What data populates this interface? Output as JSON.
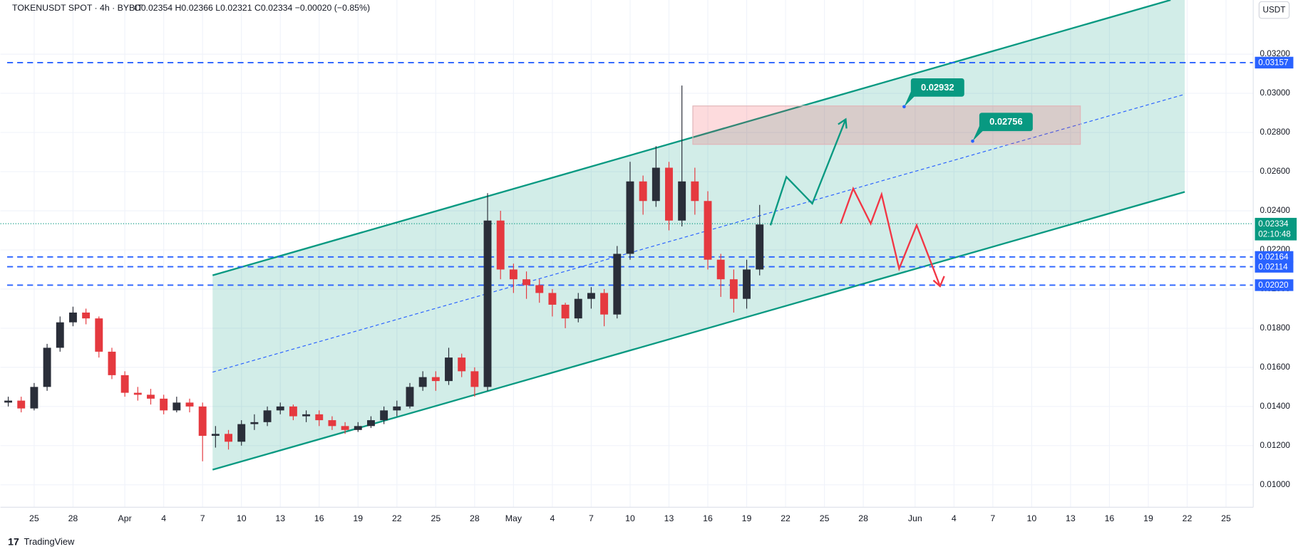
{
  "chart_data": {
    "type": "candlestick",
    "title": "TOKENUSDT SPOT · 4h · BYBIT",
    "ohlc_header": "O0.02354 H0.02366 L0.02321 C0.02334 −0.00020 (−0.85%)",
    "currency": "USDT",
    "watermark": "TradingView",
    "up_color": "#2a2e39",
    "down_color": "#e5393f",
    "x": [
      82,
      83,
      84,
      85,
      86,
      87,
      88,
      89,
      90,
      91,
      92,
      93,
      94,
      95,
      96,
      97,
      98,
      99,
      100,
      101,
      102,
      103,
      104,
      105,
      106,
      107,
      108,
      109,
      110,
      111,
      112,
      113,
      114,
      115,
      116,
      117,
      118,
      119,
      120,
      121,
      122,
      123,
      124,
      125,
      126,
      127,
      128,
      129,
      130,
      131,
      132,
      133,
      134,
      135,
      136,
      137,
      138,
      139,
      140
    ],
    "open": [
      0.0142,
      0.0143,
      0.0139,
      0.015,
      0.017,
      0.0183,
      0.0188,
      0.0185,
      0.0168,
      0.0156,
      0.0147,
      0.0146,
      0.0144,
      0.0138,
      0.0142,
      0.014,
      0.0125,
      0.0126,
      0.0122,
      0.0131,
      0.0132,
      0.0138,
      0.014,
      0.0135,
      0.0136,
      0.0133,
      0.013,
      0.0128,
      0.013,
      0.0133,
      0.0138,
      0.014,
      0.015,
      0.0155,
      0.0153,
      0.0165,
      0.0158,
      0.015,
      0.0235,
      0.021,
      0.0205,
      0.0202,
      0.0198,
      0.0192,
      0.0185,
      0.0195,
      0.0198,
      0.0187,
      0.0218,
      0.0255,
      0.0245,
      0.0262,
      0.0235,
      0.0255,
      0.0245,
      0.0215,
      0.0205,
      0.0195,
      0.021
    ],
    "high": [
      0.0145,
      0.0145,
      0.0152,
      0.0172,
      0.0186,
      0.0191,
      0.019,
      0.0186,
      0.017,
      0.0158,
      0.015,
      0.0149,
      0.0146,
      0.0145,
      0.0144,
      0.0142,
      0.013,
      0.0128,
      0.0133,
      0.0136,
      0.014,
      0.0142,
      0.0141,
      0.0138,
      0.0138,
      0.0135,
      0.0132,
      0.0132,
      0.0135,
      0.014,
      0.0143,
      0.0152,
      0.0158,
      0.0158,
      0.017,
      0.0167,
      0.016,
      0.0249,
      0.024,
      0.0213,
      0.0209,
      0.0205,
      0.02,
      0.0193,
      0.0198,
      0.0201,
      0.02,
      0.0222,
      0.0265,
      0.0258,
      0.0273,
      0.0265,
      0.0304,
      0.0262,
      0.025,
      0.0218,
      0.021,
      0.0215,
      0.0243
    ],
    "low": [
      0.014,
      0.0137,
      0.0138,
      0.0148,
      0.0168,
      0.0181,
      0.0182,
      0.0165,
      0.0154,
      0.0145,
      0.0143,
      0.0141,
      0.0136,
      0.0137,
      0.0137,
      0.0112,
      0.0119,
      0.0118,
      0.012,
      0.0128,
      0.013,
      0.0136,
      0.0133,
      0.0132,
      0.013,
      0.0128,
      0.0126,
      0.0127,
      0.0129,
      0.0131,
      0.0135,
      0.0139,
      0.0148,
      0.0148,
      0.0151,
      0.0155,
      0.0145,
      0.0148,
      0.0205,
      0.0198,
      0.0195,
      0.0193,
      0.0186,
      0.018,
      0.0183,
      0.019,
      0.0181,
      0.0185,
      0.0215,
      0.0238,
      0.0242,
      0.023,
      0.0232,
      0.0238,
      0.021,
      0.0196,
      0.0188,
      0.019,
      0.0207
    ],
    "close": [
      0.0143,
      0.0139,
      0.015,
      0.017,
      0.0183,
      0.0188,
      0.0185,
      0.0168,
      0.0156,
      0.0147,
      0.0146,
      0.0144,
      0.0138,
      0.0142,
      0.014,
      0.0125,
      0.0126,
      0.0122,
      0.0131,
      0.0132,
      0.0138,
      0.014,
      0.0135,
      0.0136,
      0.0133,
      0.013,
      0.0128,
      0.013,
      0.0133,
      0.0138,
      0.014,
      0.015,
      0.0155,
      0.0153,
      0.0165,
      0.0158,
      0.015,
      0.0235,
      0.021,
      0.0205,
      0.0202,
      0.0198,
      0.0192,
      0.0185,
      0.0195,
      0.0198,
      0.0187,
      0.0218,
      0.0255,
      0.0245,
      0.0262,
      0.0235,
      0.0255,
      0.0245,
      0.0215,
      0.0205,
      0.0195,
      0.021,
      0.0233
    ],
    "xlim": [
      81.4,
      178.1
    ],
    "ylim": [
      0.00885,
      0.03477
    ],
    "xticks": [
      {
        "value": 84,
        "label": "25"
      },
      {
        "value": 87,
        "label": "28"
      },
      {
        "value": 91,
        "label": "Apr"
      },
      {
        "value": 94,
        "label": "4"
      },
      {
        "value": 97,
        "label": "7"
      },
      {
        "value": 100,
        "label": "10"
      },
      {
        "value": 103,
        "label": "13"
      },
      {
        "value": 106,
        "label": "16"
      },
      {
        "value": 109,
        "label": "19"
      },
      {
        "value": 112,
        "label": "22"
      },
      {
        "value": 115,
        "label": "25"
      },
      {
        "value": 118,
        "label": "28"
      },
      {
        "value": 121,
        "label": "May"
      },
      {
        "value": 124,
        "label": "4"
      },
      {
        "value": 127,
        "label": "7"
      },
      {
        "value": 130,
        "label": "10"
      },
      {
        "value": 133,
        "label": "13"
      },
      {
        "value": 136,
        "label": "16"
      },
      {
        "value": 139,
        "label": "19"
      },
      {
        "value": 142,
        "label": "22"
      },
      {
        "value": 145,
        "label": "25"
      },
      {
        "value": 148,
        "label": "28"
      },
      {
        "value": 152,
        "label": "Jun"
      },
      {
        "value": 155,
        "label": "4"
      },
      {
        "value": 158,
        "label": "7"
      },
      {
        "value": 161,
        "label": "10"
      },
      {
        "value": 164,
        "label": "13"
      },
      {
        "value": 167,
        "label": "16"
      },
      {
        "value": 170,
        "label": "19"
      },
      {
        "value": 173,
        "label": "22"
      },
      {
        "value": 176,
        "label": "25"
      }
    ],
    "yticks": [
      {
        "value": 0.01,
        "label": "0.01000"
      },
      {
        "value": 0.012,
        "label": "0.01200"
      },
      {
        "value": 0.014,
        "label": "0.01400"
      },
      {
        "value": 0.016,
        "label": "0.01600"
      },
      {
        "value": 0.018,
        "label": "0.01800"
      },
      {
        "value": 0.02,
        "label": "0.02000"
      },
      {
        "value": 0.022,
        "label": "0.02200"
      },
      {
        "value": 0.024,
        "label": "0.02400"
      },
      {
        "value": 0.026,
        "label": "0.02600"
      },
      {
        "value": 0.028,
        "label": "0.02800"
      },
      {
        "value": 0.03,
        "label": "0.03000"
      },
      {
        "value": 0.032,
        "label": "0.03200"
      }
    ],
    "grid": true,
    "levels": [
      0.03157,
      0.02164,
      0.02114,
      {
        "value": 0.0202,
        "label": "0.02020"
      }
    ],
    "level_color": "#2962ff",
    "current_price": 0.02334,
    "countdown": "02:10:48",
    "price_color": "#089981",
    "targets": [
      0.02932,
      0.02756
    ]
  }
}
